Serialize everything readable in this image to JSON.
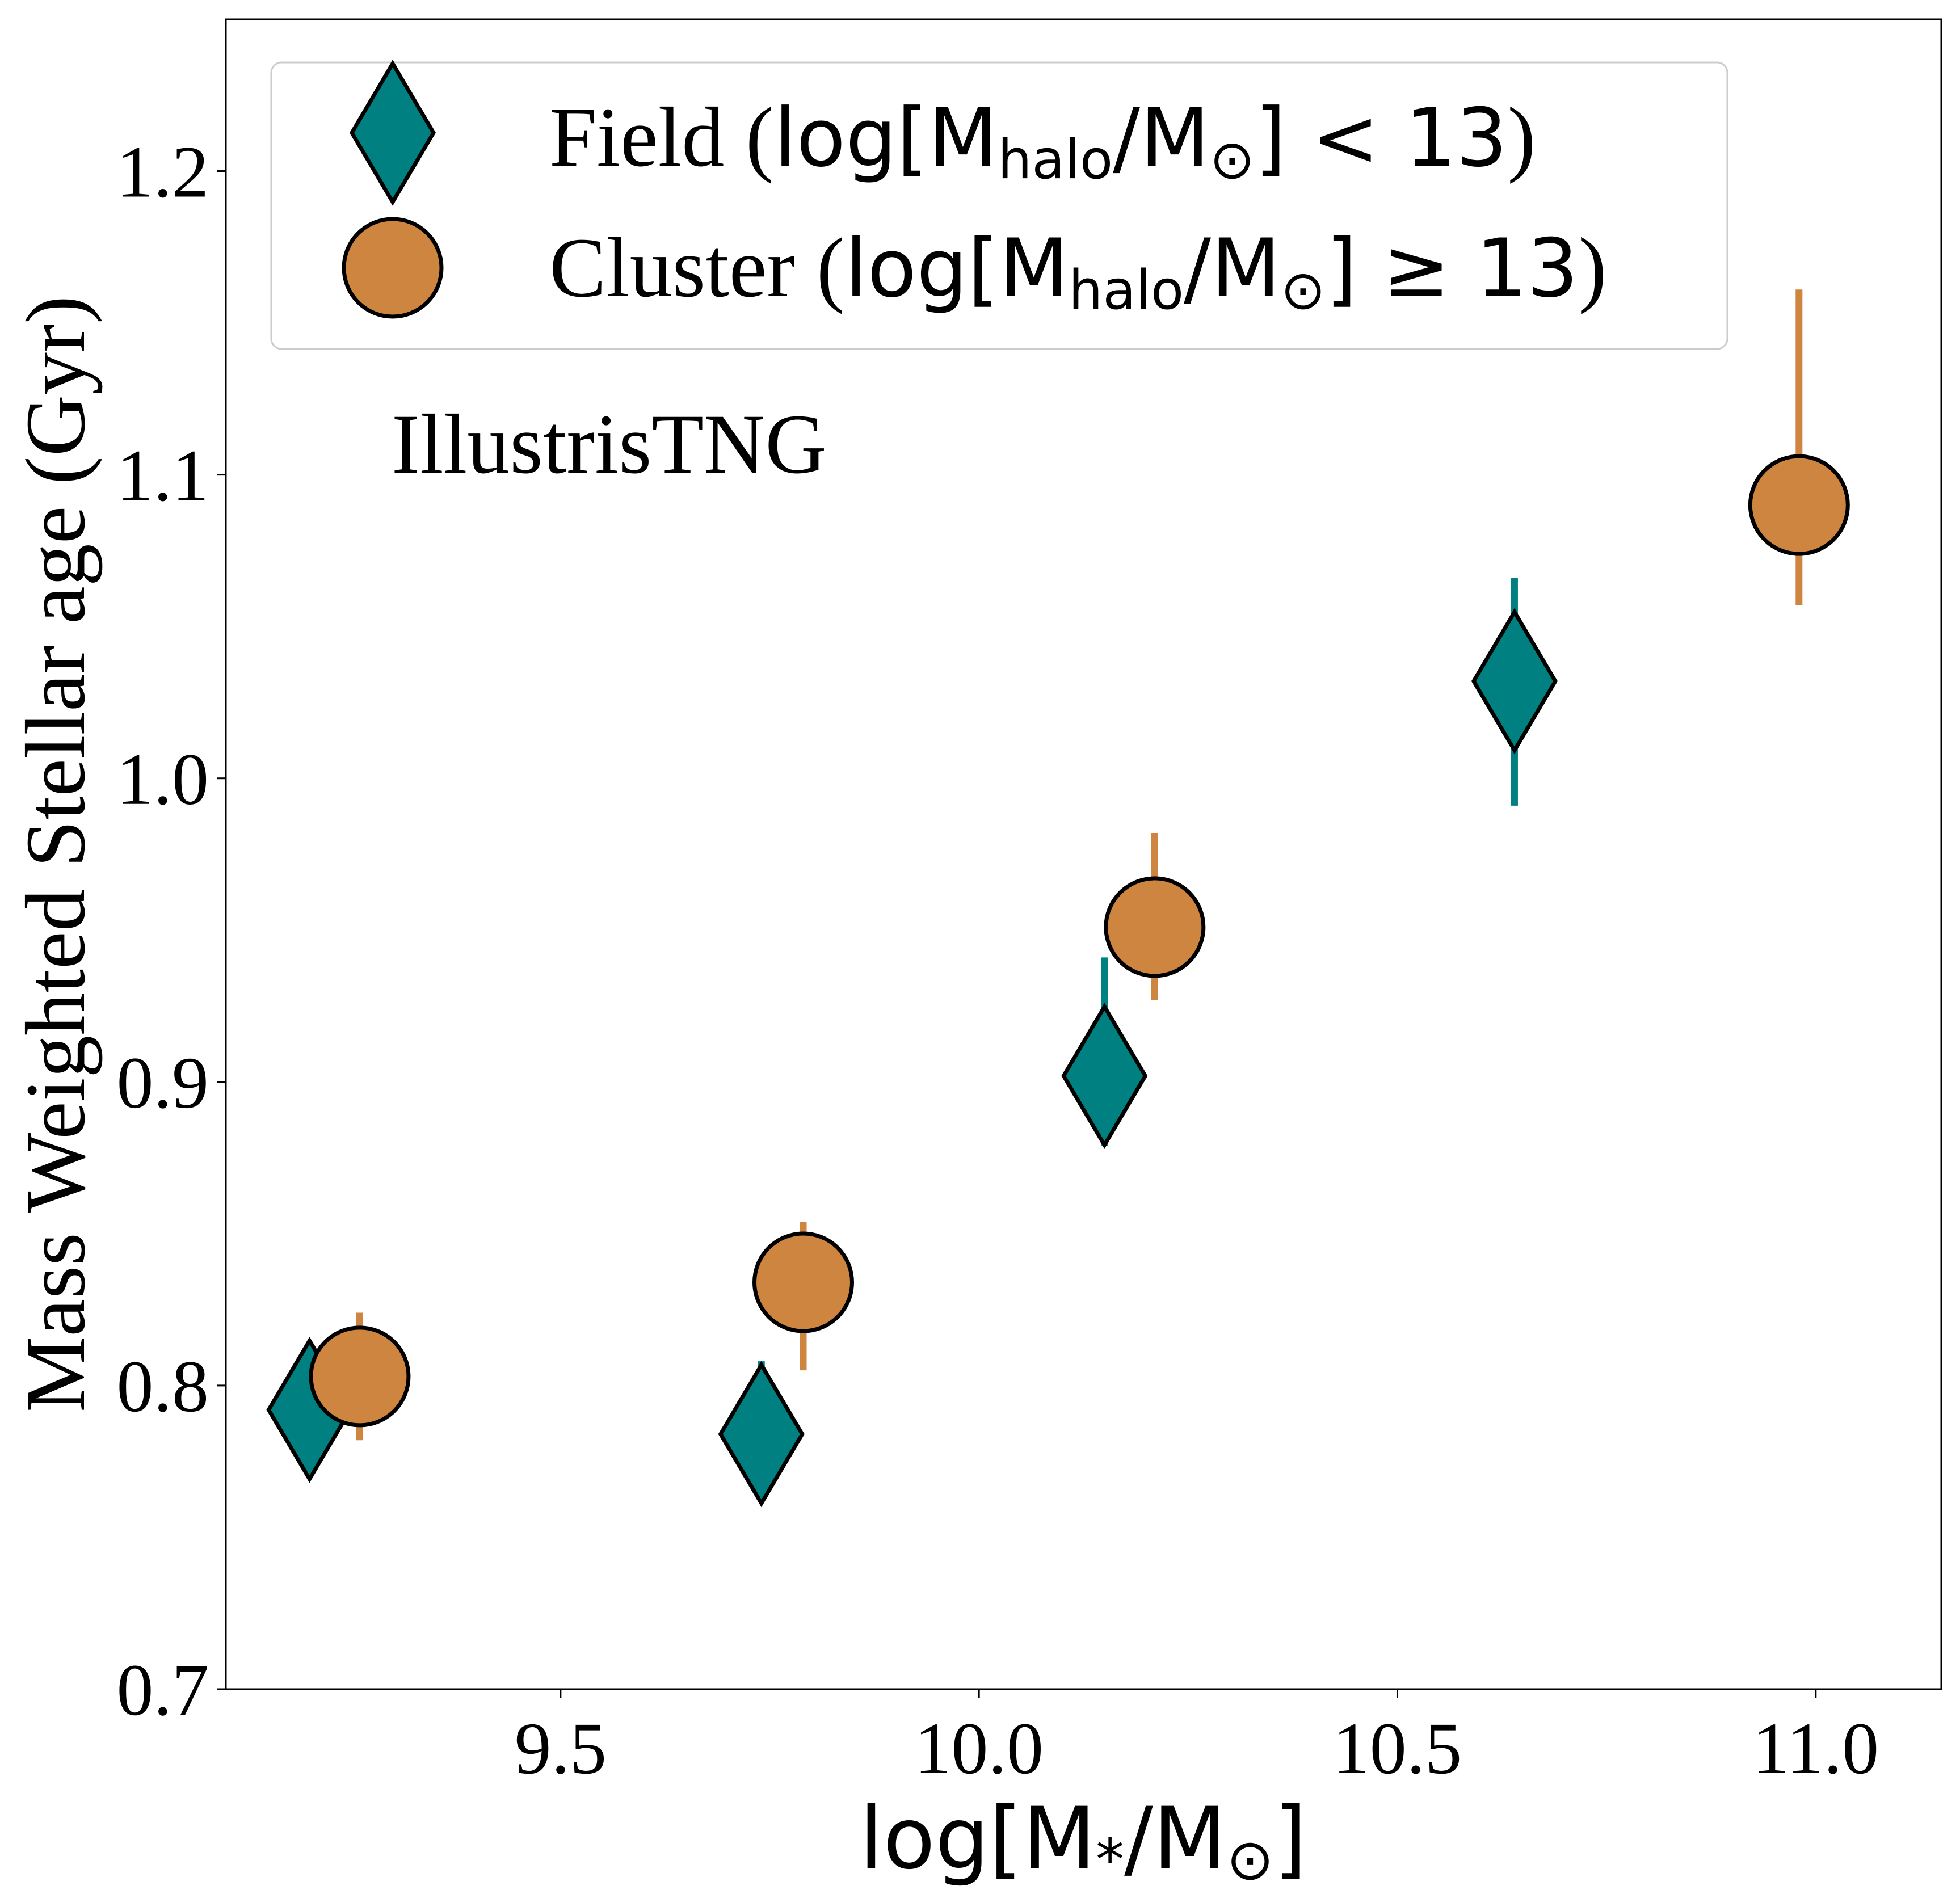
{
  "chart_data": {
    "type": "scatter",
    "xlabel": "log[M",
    "xlabel_sub": "*",
    "xlabel_tail": "/M",
    "xlabel_sun": "⊙",
    "xlabel_end": "]",
    "ylabel": "Mass Weighted Stellar age (Gyr)",
    "annotation": "IllustrisTNG",
    "xlim": [
      9.1,
      11.15
    ],
    "ylim": [
      0.7,
      1.25
    ],
    "xticks": [
      9.5,
      10.0,
      10.5,
      11.0
    ],
    "xtick_labels": [
      "9.5",
      "10.0",
      "10.5",
      "11.0"
    ],
    "yticks": [
      0.7,
      0.8,
      0.9,
      1.0,
      1.1,
      1.2
    ],
    "ytick_labels": [
      "0.7",
      "0.8",
      "0.9",
      "1.0",
      "1.1",
      "1.2"
    ],
    "series": [
      {
        "name": "Field",
        "label_serif": "Field (",
        "label_math": "log[M",
        "label_sub": "halo",
        "label_mid": "/M",
        "label_sun": "⊙",
        "label_rel": "] < 13",
        "label_close": ")",
        "marker": "diamond",
        "color": "#008080",
        "x": [
          9.2,
          9.74,
          10.15,
          10.64
        ],
        "y": [
          0.792,
          0.784,
          0.902,
          1.032
        ],
        "yerr_low": [
          0.792,
          0.784,
          0.879,
          0.991
        ],
        "yerr_high": [
          0.792,
          0.808,
          0.941,
          1.066
        ]
      },
      {
        "name": "Cluster",
        "label_serif": "Cluster (",
        "label_math": "log[M",
        "label_sub": "halo",
        "label_mid": "/M",
        "label_sun": "⊙",
        "label_rel": "] ≥ 13",
        "label_close": ")",
        "marker": "circle",
        "color": "#cd853f",
        "x": [
          9.26,
          9.79,
          10.21,
          10.98
        ],
        "y": [
          0.803,
          0.834,
          0.951,
          1.09
        ],
        "yerr_low": [
          0.782,
          0.805,
          0.927,
          1.057
        ],
        "yerr_high": [
          0.824,
          0.854,
          0.982,
          1.161
        ]
      }
    ],
    "legend_position": "top-left"
  }
}
